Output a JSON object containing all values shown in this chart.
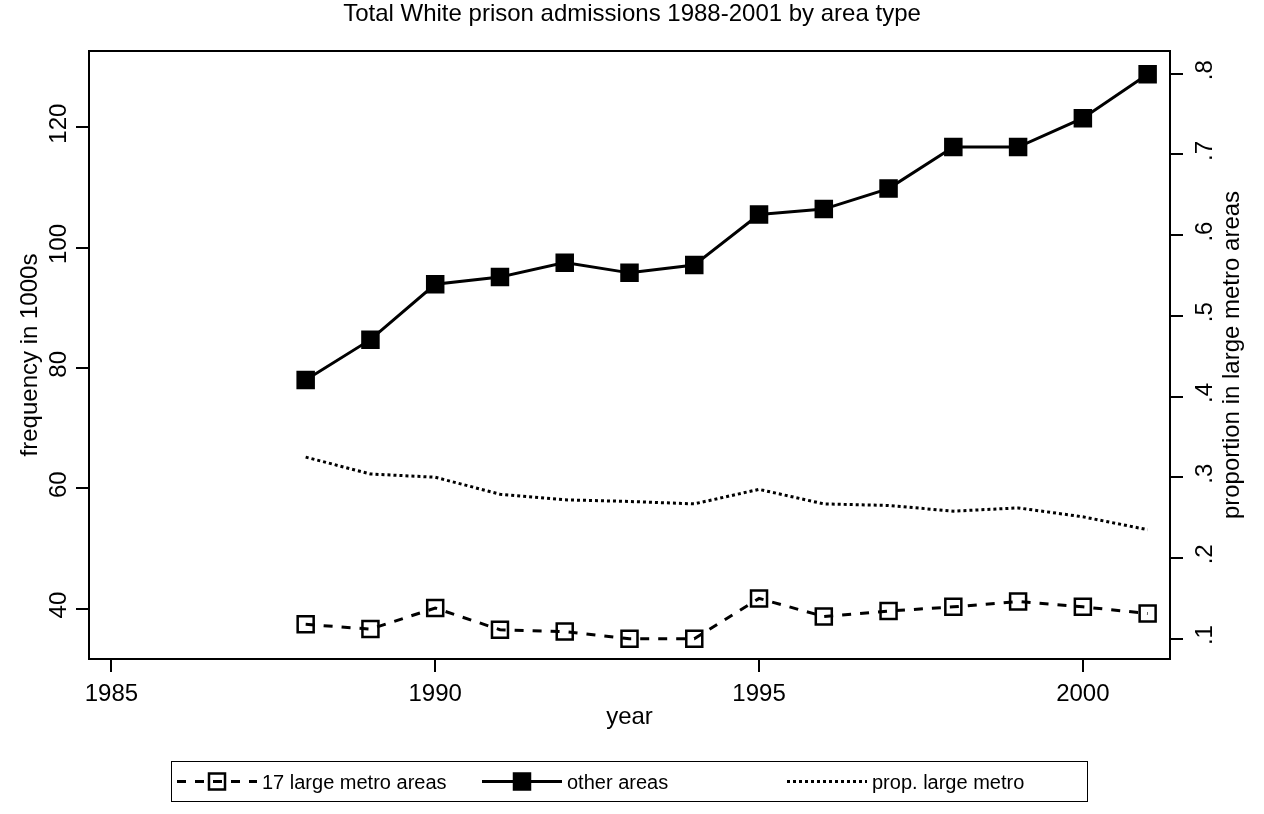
{
  "chart_data": {
    "type": "line",
    "title": "Total White prison admissions 1988-2001 by area type",
    "xlabel": "year",
    "ylabel": "frequency in 1000s",
    "y2label": "proportion in large metro areas",
    "x": [
      1988,
      1989,
      1990,
      1991,
      1992,
      1993,
      1994,
      1995,
      1996,
      1997,
      1998,
      1999,
      2000,
      2001
    ],
    "series": [
      {
        "name": "17 large metro areas",
        "color": "#000000",
        "marker": "square-open",
        "line_style": "dashed",
        "values": [
          37.4,
          36.6,
          40.1,
          36.5,
          36.2,
          35.0,
          35.0,
          41.7,
          38.7,
          39.6,
          40.3,
          41.2,
          40.3,
          39.2
        ]
      },
      {
        "name": "other areas",
        "color": "#000000",
        "marker": "square",
        "line_style": "solid",
        "values": [
          78.0,
          84.7,
          93.9,
          95.1,
          97.5,
          95.8,
          97.1,
          105.5,
          106.4,
          109.8,
          116.7,
          116.7,
          121.5,
          128.8
        ]
      },
      {
        "name": "prop. large metro",
        "color": "#000000",
        "marker": "none",
        "line_style": "dotted",
        "axis": "y2",
        "values": [
          0.325,
          0.304,
          0.3,
          0.279,
          0.272,
          0.27,
          0.267,
          0.285,
          0.267,
          0.265,
          0.258,
          0.262,
          0.251,
          0.235
        ]
      }
    ],
    "xlim": [
      1984.67,
      2001.33
    ],
    "xticks": [
      1985,
      1990,
      1995,
      2000
    ],
    "ylim": [
      31.8,
      132.5
    ],
    "yticks": [
      40,
      60,
      80,
      100,
      120
    ],
    "y2lim": [
      0.076,
      0.827
    ],
    "y2ticks": [
      {
        "value": 0.1,
        "label": ".1"
      },
      {
        "value": 0.2,
        "label": ".2"
      },
      {
        "value": 0.3,
        "label": ".3"
      },
      {
        "value": 0.4,
        "label": ".4"
      },
      {
        "value": 0.5,
        "label": ".5"
      },
      {
        "value": 0.6,
        "label": ".6"
      },
      {
        "value": 0.7,
        "label": ".7"
      },
      {
        "value": 0.8,
        "label": ".8"
      }
    ],
    "legend": "bottom"
  }
}
